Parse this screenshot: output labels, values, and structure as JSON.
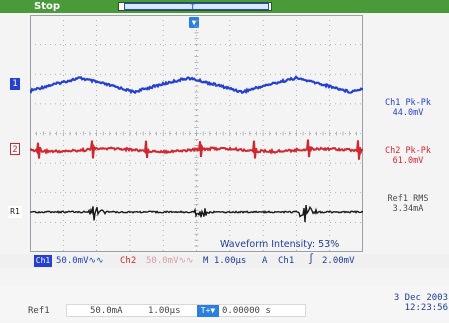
{
  "header": {
    "run_state": "Stop",
    "trigger_marker": "T",
    "trigger_position_marker": "▼"
  },
  "markers": {
    "ch1": "1",
    "ch2": "2",
    "ref1": "R1"
  },
  "measurements": {
    "ch1_label": "Ch1 Pk-Pk",
    "ch1_value": "44.0mV",
    "ch2_label": "Ch2 Pk-Pk",
    "ch2_value": "61.0mV",
    "ref1_label": "Ref1 RMS",
    "ref1_value": "3.34mA"
  },
  "intensity": "Waveform Intensity:  53%",
  "status": {
    "ch1_tag": "Ch1",
    "ch1_scale": "50.0mV∿∿",
    "ch2_tag": "Ch2",
    "ch2_scale": "50.0mV∿∿",
    "timebase": "M 1.00µs",
    "trigger_mode": "A",
    "trigger_source": "Ch1",
    "trigger_slope": "∫",
    "trigger_level": "2.00mV"
  },
  "bottom": {
    "date": "3 Dec  2003",
    "time": "12:23:56",
    "ref1_label": "Ref1",
    "ref1_scale": "50.0mA",
    "ref1_time": "1.00µs",
    "cursor_tag": "T+▼",
    "ref1_position": "0.00000 s"
  },
  "colors": {
    "ch1": "#2440d0",
    "ch2": "#d02830",
    "ref1": "#1a1a1a",
    "grid": "#9aa0a6"
  }
}
